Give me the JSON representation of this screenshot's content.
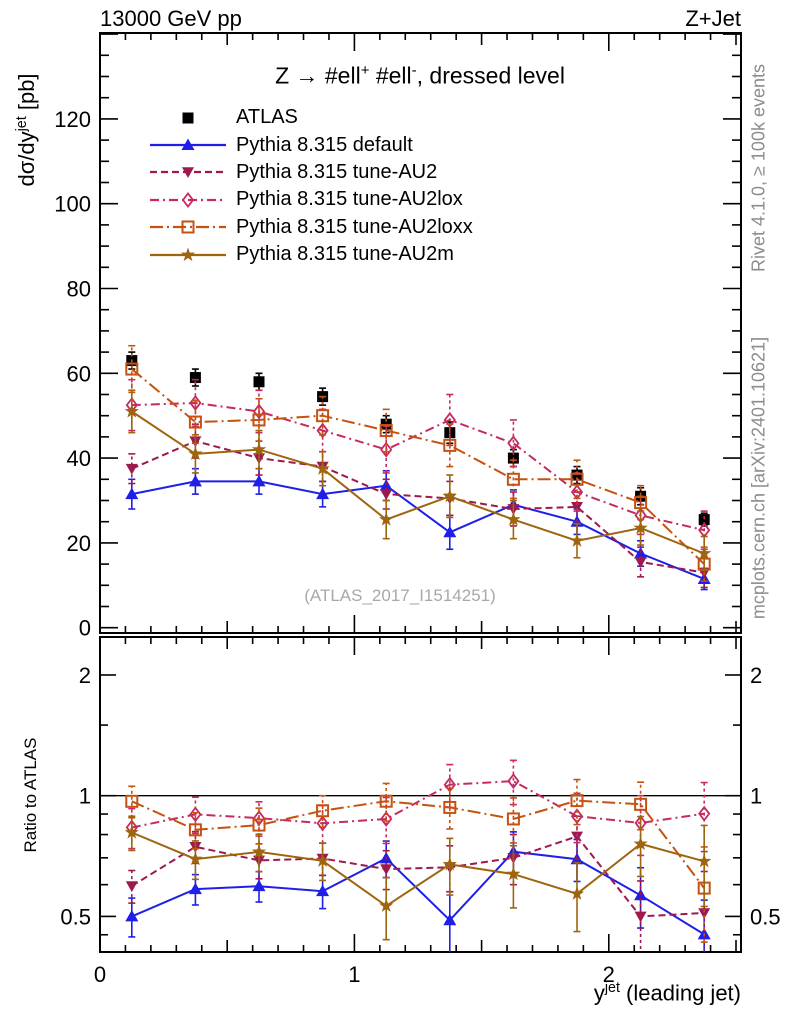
{
  "titles": {
    "top_left": "13000 GeV pp",
    "top_right": "Z+Jet",
    "watermark": "(ATLAS_2017_I1514251)",
    "side_right_top": "Rivet 4.1.0, ≥ 100k events",
    "side_right_bottom": "mcplots.cern.ch [arXiv:2401.10621]"
  },
  "rich_text": {
    "plot_title_segments": [
      {
        "t": "Z → #ell"
      },
      {
        "t": "+",
        "sup": true
      },
      {
        "t": " #ell"
      },
      {
        "t": "-",
        "sup": true
      },
      {
        "t": ", dressed level"
      }
    ],
    "ylabel_main_segments": [
      {
        "t": "dσ/dy"
      },
      {
        "t": "jet",
        "sup": true
      },
      {
        "t": " [pb]"
      }
    ],
    "xlabel_segments": [
      {
        "t": "y"
      },
      {
        "t": "jet",
        "sup": true
      },
      {
        "t": " (leading jet)"
      }
    ]
  },
  "chart_data": {
    "type": "line",
    "title": "Z -> #ell+ #ell-, dressed level",
    "xlabel": "y^jet (leading jet)",
    "ylabel_main": "dσ/dy^jet [pb]",
    "ylabel_ratio": "Ratio to ATLAS",
    "x": [
      0.125,
      0.375,
      0.625,
      0.875,
      1.125,
      1.375,
      1.625,
      1.875,
      2.125,
      2.375
    ],
    "bin_width": 0.25,
    "xlim": [
      0,
      2.52
    ],
    "ylim_main": [
      0,
      140.3
    ],
    "ylim_ratio": [
      0.41,
      2.5
    ],
    "ratio_scale": "log",
    "x_ticks_major": [
      0,
      1,
      2
    ],
    "x_ticks_medium": [
      0.5,
      1.5,
      2.5
    ],
    "x_tick_minor_step": 0.1,
    "y_ticks_main_major": [
      0,
      20,
      40,
      60,
      80,
      100,
      120,
      140
    ],
    "y_ticks_main_labeled": [
      0,
      20,
      40,
      60,
      80,
      100,
      120
    ],
    "y_tick_main_minor_step": 5,
    "y_ticks_ratio_major": [
      0.5,
      1,
      2
    ],
    "y_ticks_ratio_minor": [
      0.45,
      0.6,
      0.7,
      0.8,
      0.9,
      1.5,
      2.5
    ],
    "reference_series": "ATLAS",
    "legend_position": "top-left",
    "series": [
      {
        "id": "atlas",
        "name": "ATLAS",
        "color": "#000000",
        "line": "none",
        "marker": "square-filled",
        "values": [
          63,
          59,
          58,
          54.5,
          48,
          46,
          40,
          36,
          31,
          25.5
        ],
        "errors": [
          2,
          2,
          2,
          2,
          2,
          2.5,
          2,
          2,
          2,
          1.5
        ]
      },
      {
        "id": "default",
        "name": "Pythia 8.315 default",
        "color": "#1f1fe8",
        "line": "solid",
        "marker": "triangle-up-filled",
        "values": [
          31.5,
          34.5,
          34.5,
          31.5,
          33.5,
          22.5,
          29,
          25,
          17.5,
          11.5
        ],
        "errors": [
          3.5,
          3,
          3,
          3,
          3.5,
          4,
          3.5,
          3,
          3,
          2.5
        ]
      },
      {
        "id": "au2",
        "name": "Pythia 8.315 tune-AU2",
        "color": "#9e1a4e",
        "line": "dashed",
        "marker": "triangle-down-filled",
        "values": [
          37.5,
          44,
          40,
          38,
          31.5,
          30.5,
          28,
          28.5,
          15.5,
          13
        ],
        "errors": [
          3.5,
          4,
          4,
          3.5,
          3.5,
          4,
          4,
          3.5,
          3.5,
          3.5
        ]
      },
      {
        "id": "au2lox",
        "name": "Pythia 8.315 tune-AU2lox",
        "color": "#c62a60",
        "line": "dash-dot",
        "marker": "diamond-open",
        "values": [
          52.5,
          53,
          51,
          46.5,
          42,
          49,
          43.5,
          32,
          26.5,
          23
        ],
        "errors": [
          6,
          5.5,
          5,
          5,
          5.5,
          6,
          5.5,
          4.5,
          4.5,
          4.5
        ]
      },
      {
        "id": "au2loxx",
        "name": "Pythia 8.315 tune-AU2loxx",
        "color": "#c65211",
        "line": "dash-dot-long",
        "marker": "square-open",
        "values": [
          61,
          48.5,
          49,
          50,
          46.5,
          43,
          35,
          35,
          29.5,
          15
        ],
        "errors": [
          5.5,
          5,
          5,
          4.5,
          5,
          5,
          4.5,
          4.5,
          4,
          4
        ]
      },
      {
        "id": "au2m",
        "name": "Pythia 8.315 tune-AU2m",
        "color": "#9e650e",
        "line": "solid",
        "marker": "star-filled",
        "values": [
          51,
          41,
          42,
          37.5,
          25.5,
          31,
          25.5,
          20.5,
          23.5,
          17.5
        ],
        "errors": [
          5,
          4.5,
          4.5,
          4,
          4.5,
          5,
          4.5,
          4,
          4,
          4
        ]
      }
    ]
  }
}
